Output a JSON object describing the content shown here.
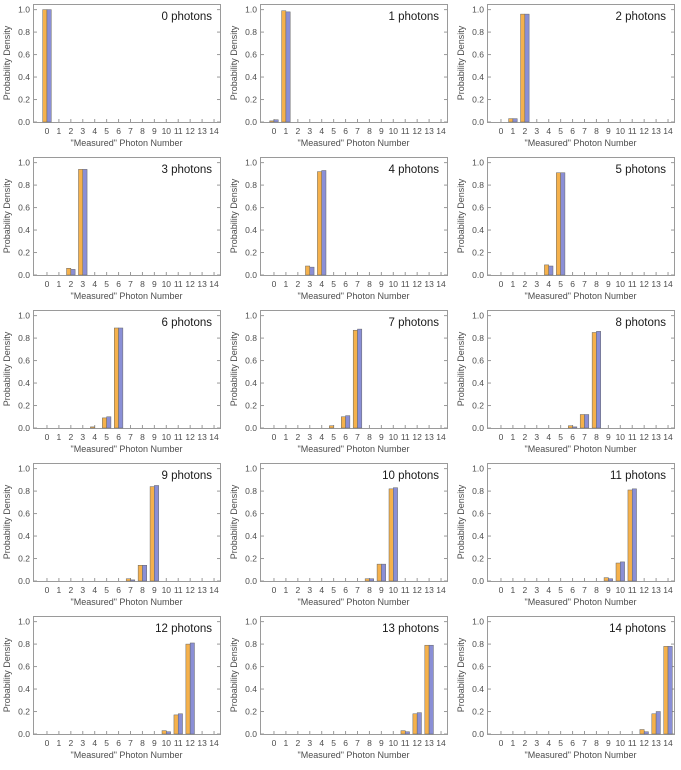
{
  "colors": {
    "series_a": "#f5b14c",
    "series_b": "#8a8fd6",
    "axis": "#9a9a9a",
    "text": "#4d4d4d",
    "title": "#1a1a1a"
  },
  "chart_data": [
    {
      "type": "bar",
      "title": "0 photons",
      "xlabel": "\"Measured\" Photon Number",
      "ylabel": "Probability Density",
      "categories": [
        "0",
        "1",
        "2",
        "3",
        "4",
        "5",
        "6",
        "7",
        "8",
        "9",
        "10",
        "11",
        "12",
        "13",
        "14"
      ],
      "ylim": [
        0,
        1.05
      ],
      "yticks": [
        "0.0",
        "0.2",
        "0.4",
        "0.6",
        "0.8",
        "1.0"
      ],
      "grid": false,
      "series": [
        {
          "values": [
            1.0,
            0,
            0,
            0,
            0,
            0,
            0,
            0,
            0,
            0,
            0,
            0,
            0,
            0,
            0
          ]
        },
        {
          "values": [
            1.0,
            0,
            0,
            0,
            0,
            0,
            0,
            0,
            0,
            0,
            0,
            0,
            0,
            0,
            0
          ]
        }
      ]
    },
    {
      "type": "bar",
      "title": "1 photons",
      "xlabel": "\"Measured\" Photon Number",
      "ylabel": "Probability Density",
      "categories": [
        "0",
        "1",
        "2",
        "3",
        "4",
        "5",
        "6",
        "7",
        "8",
        "9",
        "10",
        "11",
        "12",
        "13",
        "14"
      ],
      "ylim": [
        0,
        1.05
      ],
      "yticks": [
        "0.0",
        "0.2",
        "0.4",
        "0.6",
        "0.8",
        "1.0"
      ],
      "grid": false,
      "series": [
        {
          "values": [
            0.01,
            0.99,
            0,
            0,
            0,
            0,
            0,
            0,
            0,
            0,
            0,
            0,
            0,
            0,
            0
          ]
        },
        {
          "values": [
            0.02,
            0.98,
            0,
            0,
            0,
            0,
            0,
            0,
            0,
            0,
            0,
            0,
            0,
            0,
            0
          ]
        }
      ]
    },
    {
      "type": "bar",
      "title": "2 photons",
      "xlabel": "\"Measured\" Photon Number",
      "ylabel": "Probability Density",
      "categories": [
        "0",
        "1",
        "2",
        "3",
        "4",
        "5",
        "6",
        "7",
        "8",
        "9",
        "10",
        "11",
        "12",
        "13",
        "14"
      ],
      "ylim": [
        0,
        1.05
      ],
      "yticks": [
        "0.0",
        "0.2",
        "0.4",
        "0.6",
        "0.8",
        "1.0"
      ],
      "grid": false,
      "series": [
        {
          "values": [
            0,
            0.03,
            0.96,
            0,
            0,
            0,
            0,
            0,
            0,
            0,
            0,
            0,
            0,
            0,
            0
          ]
        },
        {
          "values": [
            0,
            0.03,
            0.96,
            0,
            0,
            0,
            0,
            0,
            0,
            0,
            0,
            0,
            0,
            0,
            0
          ]
        }
      ]
    },
    {
      "type": "bar",
      "title": "3 photons",
      "xlabel": "\"Measured\" Photon Number",
      "ylabel": "Probability Density",
      "categories": [
        "0",
        "1",
        "2",
        "3",
        "4",
        "5",
        "6",
        "7",
        "8",
        "9",
        "10",
        "11",
        "12",
        "13",
        "14"
      ],
      "ylim": [
        0,
        1.05
      ],
      "yticks": [
        "0.0",
        "0.2",
        "0.4",
        "0.6",
        "0.8",
        "1.0"
      ],
      "grid": false,
      "series": [
        {
          "values": [
            0,
            0,
            0.06,
            0.94,
            0,
            0,
            0,
            0,
            0,
            0,
            0,
            0,
            0,
            0,
            0
          ]
        },
        {
          "values": [
            0,
            0,
            0.05,
            0.94,
            0,
            0,
            0,
            0,
            0,
            0,
            0,
            0,
            0,
            0,
            0
          ]
        }
      ]
    },
    {
      "type": "bar",
      "title": "4 photons",
      "xlabel": "\"Measured\" Photon Number",
      "ylabel": "Probability Density",
      "categories": [
        "0",
        "1",
        "2",
        "3",
        "4",
        "5",
        "6",
        "7",
        "8",
        "9",
        "10",
        "11",
        "12",
        "13",
        "14"
      ],
      "ylim": [
        0,
        1.05
      ],
      "yticks": [
        "0.0",
        "0.2",
        "0.4",
        "0.6",
        "0.8",
        "1.0"
      ],
      "grid": false,
      "series": [
        {
          "values": [
            0,
            0,
            0,
            0.08,
            0.92,
            0,
            0,
            0,
            0,
            0,
            0,
            0,
            0,
            0,
            0
          ]
        },
        {
          "values": [
            0,
            0,
            0,
            0.07,
            0.93,
            0,
            0,
            0,
            0,
            0,
            0,
            0,
            0,
            0,
            0
          ]
        }
      ]
    },
    {
      "type": "bar",
      "title": "5 photons",
      "xlabel": "\"Measured\" Photon Number",
      "ylabel": "Probability Density",
      "categories": [
        "0",
        "1",
        "2",
        "3",
        "4",
        "5",
        "6",
        "7",
        "8",
        "9",
        "10",
        "11",
        "12",
        "13",
        "14"
      ],
      "ylim": [
        0,
        1.05
      ],
      "yticks": [
        "0.0",
        "0.2",
        "0.4",
        "0.6",
        "0.8",
        "1.0"
      ],
      "grid": false,
      "series": [
        {
          "values": [
            0,
            0,
            0,
            0,
            0.09,
            0.91,
            0,
            0,
            0,
            0,
            0,
            0,
            0,
            0,
            0
          ]
        },
        {
          "values": [
            0,
            0,
            0,
            0,
            0.08,
            0.91,
            0,
            0,
            0,
            0,
            0,
            0,
            0,
            0,
            0
          ]
        }
      ]
    },
    {
      "type": "bar",
      "title": "6 photons",
      "xlabel": "\"Measured\" Photon Number",
      "ylabel": "Probability Density",
      "categories": [
        "0",
        "1",
        "2",
        "3",
        "4",
        "5",
        "6",
        "7",
        "8",
        "9",
        "10",
        "11",
        "12",
        "13",
        "14"
      ],
      "ylim": [
        0,
        1.05
      ],
      "yticks": [
        "0.0",
        "0.2",
        "0.4",
        "0.6",
        "0.8",
        "1.0"
      ],
      "grid": false,
      "series": [
        {
          "values": [
            0,
            0,
            0,
            0,
            0.01,
            0.09,
            0.89,
            0,
            0,
            0,
            0,
            0,
            0,
            0,
            0
          ]
        },
        {
          "values": [
            0,
            0,
            0,
            0,
            0,
            0.1,
            0.89,
            0,
            0,
            0,
            0,
            0,
            0,
            0,
            0
          ]
        }
      ]
    },
    {
      "type": "bar",
      "title": "7 photons",
      "xlabel": "\"Measured\" Photon Number",
      "ylabel": "Probability Density",
      "categories": [
        "0",
        "1",
        "2",
        "3",
        "4",
        "5",
        "6",
        "7",
        "8",
        "9",
        "10",
        "11",
        "12",
        "13",
        "14"
      ],
      "ylim": [
        0,
        1.05
      ],
      "yticks": [
        "0.0",
        "0.2",
        "0.4",
        "0.6",
        "0.8",
        "1.0"
      ],
      "grid": false,
      "series": [
        {
          "values": [
            0,
            0,
            0,
            0,
            0,
            0.02,
            0.1,
            0.87,
            0,
            0,
            0,
            0,
            0,
            0,
            0
          ]
        },
        {
          "values": [
            0,
            0,
            0,
            0,
            0,
            0,
            0.11,
            0.88,
            0,
            0,
            0,
            0,
            0,
            0,
            0
          ]
        }
      ]
    },
    {
      "type": "bar",
      "title": "8 photons",
      "xlabel": "\"Measured\" Photon Number",
      "ylabel": "Probability Density",
      "categories": [
        "0",
        "1",
        "2",
        "3",
        "4",
        "5",
        "6",
        "7",
        "8",
        "9",
        "10",
        "11",
        "12",
        "13",
        "14"
      ],
      "ylim": [
        0,
        1.05
      ],
      "yticks": [
        "0.0",
        "0.2",
        "0.4",
        "0.6",
        "0.8",
        "1.0"
      ],
      "grid": false,
      "series": [
        {
          "values": [
            0,
            0,
            0,
            0,
            0,
            0,
            0.02,
            0.12,
            0.85,
            0,
            0,
            0,
            0,
            0,
            0
          ]
        },
        {
          "values": [
            0,
            0,
            0,
            0,
            0,
            0,
            0.01,
            0.12,
            0.86,
            0,
            0,
            0,
            0,
            0,
            0
          ]
        }
      ]
    },
    {
      "type": "bar",
      "title": "9 photons",
      "xlabel": "\"Measured\" Photon Number",
      "ylabel": "Probability Density",
      "categories": [
        "0",
        "1",
        "2",
        "3",
        "4",
        "5",
        "6",
        "7",
        "8",
        "9",
        "10",
        "11",
        "12",
        "13",
        "14"
      ],
      "ylim": [
        0,
        1.05
      ],
      "yticks": [
        "0.0",
        "0.2",
        "0.4",
        "0.6",
        "0.8",
        "1.0"
      ],
      "grid": false,
      "series": [
        {
          "values": [
            0,
            0,
            0,
            0,
            0,
            0,
            0,
            0.02,
            0.14,
            0.84,
            0,
            0,
            0,
            0,
            0
          ]
        },
        {
          "values": [
            0,
            0,
            0,
            0,
            0,
            0,
            0,
            0.01,
            0.14,
            0.85,
            0,
            0,
            0,
            0,
            0
          ]
        }
      ]
    },
    {
      "type": "bar",
      "title": "10 photons",
      "xlabel": "\"Measured\" Photon Number",
      "ylabel": "Probability Density",
      "categories": [
        "0",
        "1",
        "2",
        "3",
        "4",
        "5",
        "6",
        "7",
        "8",
        "9",
        "10",
        "11",
        "12",
        "13",
        "14"
      ],
      "ylim": [
        0,
        1.05
      ],
      "yticks": [
        "0.0",
        "0.2",
        "0.4",
        "0.6",
        "0.8",
        "1.0"
      ],
      "grid": false,
      "series": [
        {
          "values": [
            0,
            0,
            0,
            0,
            0,
            0,
            0,
            0,
            0.02,
            0.15,
            0.82,
            0,
            0,
            0,
            0
          ]
        },
        {
          "values": [
            0,
            0,
            0,
            0,
            0,
            0,
            0,
            0,
            0.02,
            0.15,
            0.83,
            0,
            0,
            0,
            0
          ]
        }
      ]
    },
    {
      "type": "bar",
      "title": "11 photons",
      "xlabel": "\"Measured\" Photon Number",
      "ylabel": "Probability Density",
      "categories": [
        "0",
        "1",
        "2",
        "3",
        "4",
        "5",
        "6",
        "7",
        "8",
        "9",
        "10",
        "11",
        "12",
        "13",
        "14"
      ],
      "ylim": [
        0,
        1.05
      ],
      "yticks": [
        "0.0",
        "0.2",
        "0.4",
        "0.6",
        "0.8",
        "1.0"
      ],
      "grid": false,
      "series": [
        {
          "values": [
            0,
            0,
            0,
            0,
            0,
            0,
            0,
            0,
            0,
            0.03,
            0.16,
            0.81,
            0,
            0,
            0
          ]
        },
        {
          "values": [
            0,
            0,
            0,
            0,
            0,
            0,
            0,
            0,
            0,
            0.02,
            0.17,
            0.82,
            0,
            0,
            0
          ]
        }
      ]
    },
    {
      "type": "bar",
      "title": "12 photons",
      "xlabel": "\"Measured\" Photon Number",
      "ylabel": "Probability Density",
      "categories": [
        "0",
        "1",
        "2",
        "3",
        "4",
        "5",
        "6",
        "7",
        "8",
        "9",
        "10",
        "11",
        "12",
        "13",
        "14"
      ],
      "ylim": [
        0,
        1.05
      ],
      "yticks": [
        "0.0",
        "0.2",
        "0.4",
        "0.6",
        "0.8",
        "1.0"
      ],
      "grid": false,
      "series": [
        {
          "values": [
            0,
            0,
            0,
            0,
            0,
            0,
            0,
            0,
            0,
            0,
            0.03,
            0.17,
            0.8,
            0,
            0
          ]
        },
        {
          "values": [
            0,
            0,
            0,
            0,
            0,
            0,
            0,
            0,
            0,
            0,
            0.02,
            0.18,
            0.81,
            0,
            0
          ]
        }
      ]
    },
    {
      "type": "bar",
      "title": "13 photons",
      "xlabel": "\"Measured\" Photon Number",
      "ylabel": "Probability Density",
      "categories": [
        "0",
        "1",
        "2",
        "3",
        "4",
        "5",
        "6",
        "7",
        "8",
        "9",
        "10",
        "11",
        "12",
        "13",
        "14"
      ],
      "ylim": [
        0,
        1.05
      ],
      "yticks": [
        "0.0",
        "0.2",
        "0.4",
        "0.6",
        "0.8",
        "1.0"
      ],
      "grid": false,
      "series": [
        {
          "values": [
            0,
            0,
            0,
            0,
            0,
            0,
            0,
            0,
            0,
            0,
            0,
            0.03,
            0.18,
            0.79,
            0
          ]
        },
        {
          "values": [
            0,
            0,
            0,
            0,
            0,
            0,
            0,
            0,
            0,
            0,
            0,
            0.02,
            0.19,
            0.79,
            0
          ]
        }
      ]
    },
    {
      "type": "bar",
      "title": "14 photons",
      "xlabel": "\"Measured\" Photon Number",
      "ylabel": "Probability Density",
      "categories": [
        "0",
        "1",
        "2",
        "3",
        "4",
        "5",
        "6",
        "7",
        "8",
        "9",
        "10",
        "11",
        "12",
        "13",
        "14"
      ],
      "ylim": [
        0,
        1.05
      ],
      "yticks": [
        "0.0",
        "0.2",
        "0.4",
        "0.6",
        "0.8",
        "1.0"
      ],
      "grid": false,
      "series": [
        {
          "values": [
            0,
            0,
            0,
            0,
            0,
            0,
            0,
            0,
            0,
            0,
            0,
            0,
            0.04,
            0.18,
            0.78
          ]
        },
        {
          "values": [
            0,
            0,
            0,
            0,
            0,
            0,
            0,
            0,
            0,
            0,
            0,
            0,
            0.02,
            0.2,
            0.78
          ]
        }
      ]
    }
  ]
}
